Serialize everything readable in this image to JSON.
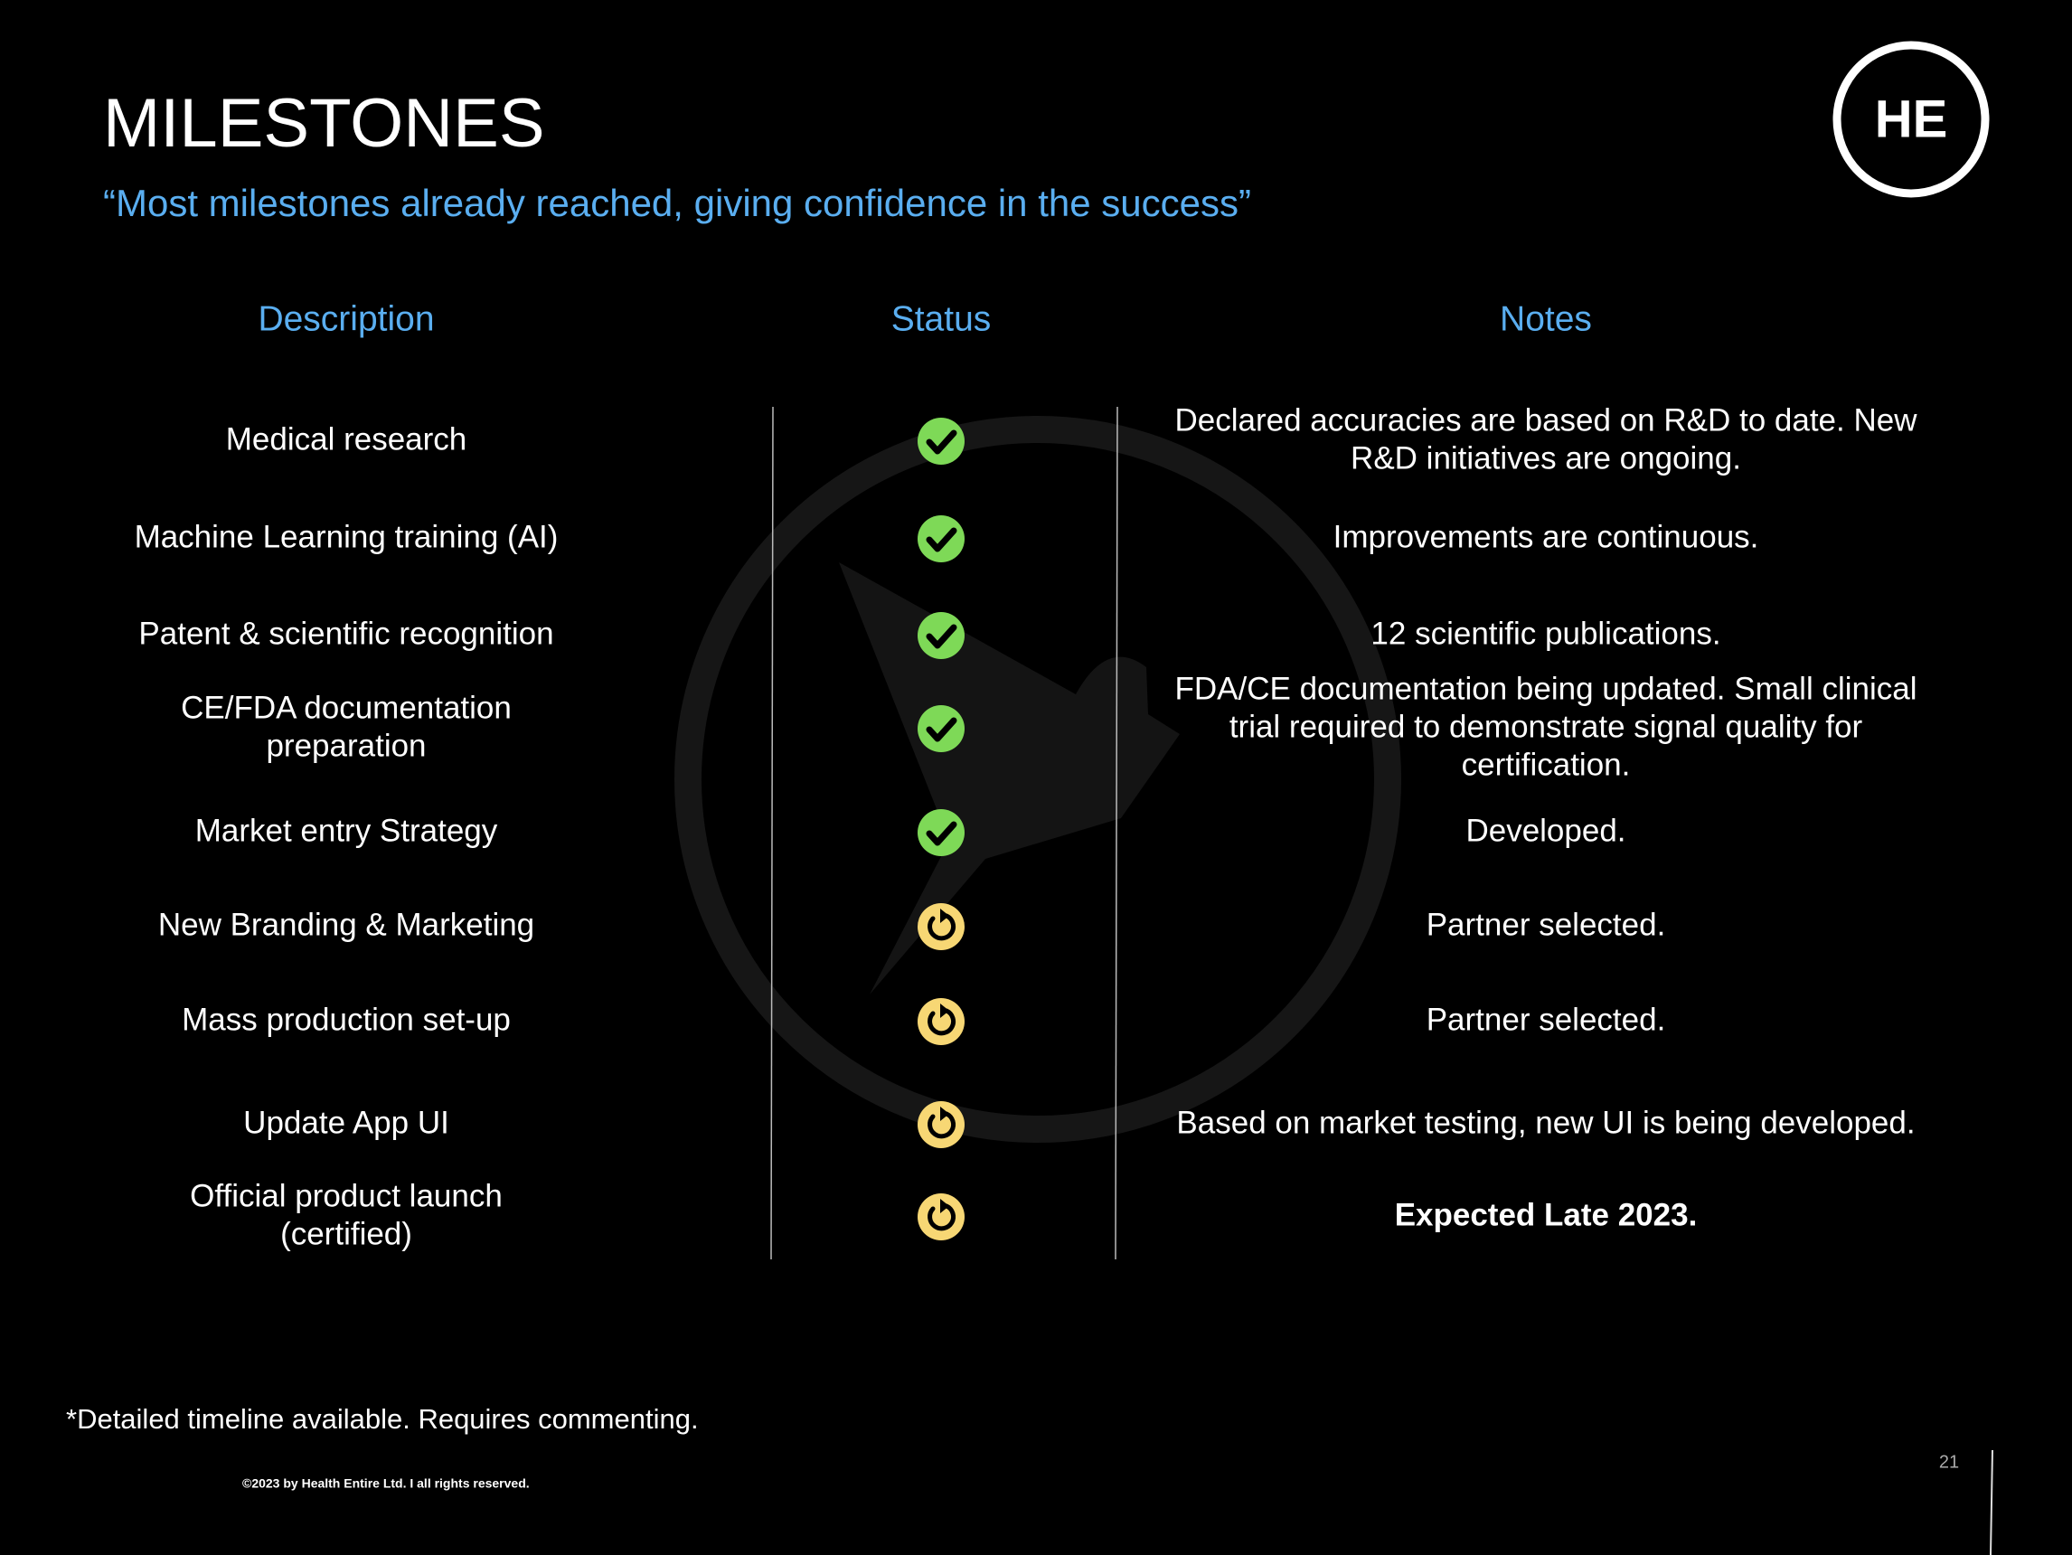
{
  "header": {
    "title": "MILESTONES",
    "subtitle": "“Most milestones already reached, giving confidence in the success”",
    "logo": "HE"
  },
  "table": {
    "columns": [
      "Description",
      "Status",
      "Notes"
    ],
    "rows": [
      {
        "description": [
          "Medical research"
        ],
        "status": "done",
        "notes": [
          "Declared accuracies are based on R&D to date. New",
          "R&D initiatives are ongoing."
        ]
      },
      {
        "description": [
          "Machine Learning training (AI)"
        ],
        "status": "done",
        "notes": [
          "Improvements are continuous."
        ]
      },
      {
        "description": [
          "Patent & scientific recognition"
        ],
        "status": "done",
        "notes": [
          "12 scientific publications."
        ]
      },
      {
        "description": [
          "CE/FDA documentation",
          "preparation"
        ],
        "status": "done",
        "notes": [
          "FDA/CE documentation being updated. Small clinical",
          "trial required to demonstrate signal quality for",
          "certification."
        ]
      },
      {
        "description": [
          "Market entry Strategy"
        ],
        "status": "done",
        "notes": [
          "Developed."
        ]
      },
      {
        "description": [
          "New Branding & Marketing"
        ],
        "status": "in_progress",
        "notes": [
          "Partner selected."
        ]
      },
      {
        "description": [
          "Mass production set-up"
        ],
        "status": "in_progress",
        "notes": [
          "Partner selected."
        ]
      },
      {
        "description": [
          "Update App UI"
        ],
        "status": "in_progress",
        "notes": [
          "Based on market testing, new UI is being developed."
        ]
      },
      {
        "description": [
          "Official product launch",
          "(certified)"
        ],
        "status": "in_progress",
        "notes": [
          "Expected Late 2023."
        ],
        "emphasis": true
      }
    ]
  },
  "footer": {
    "footnote": "*Detailed timeline available. Requires commenting.",
    "copyright": "©2023 by Health Entire Ltd. I all rights reserved.",
    "page": "21"
  }
}
